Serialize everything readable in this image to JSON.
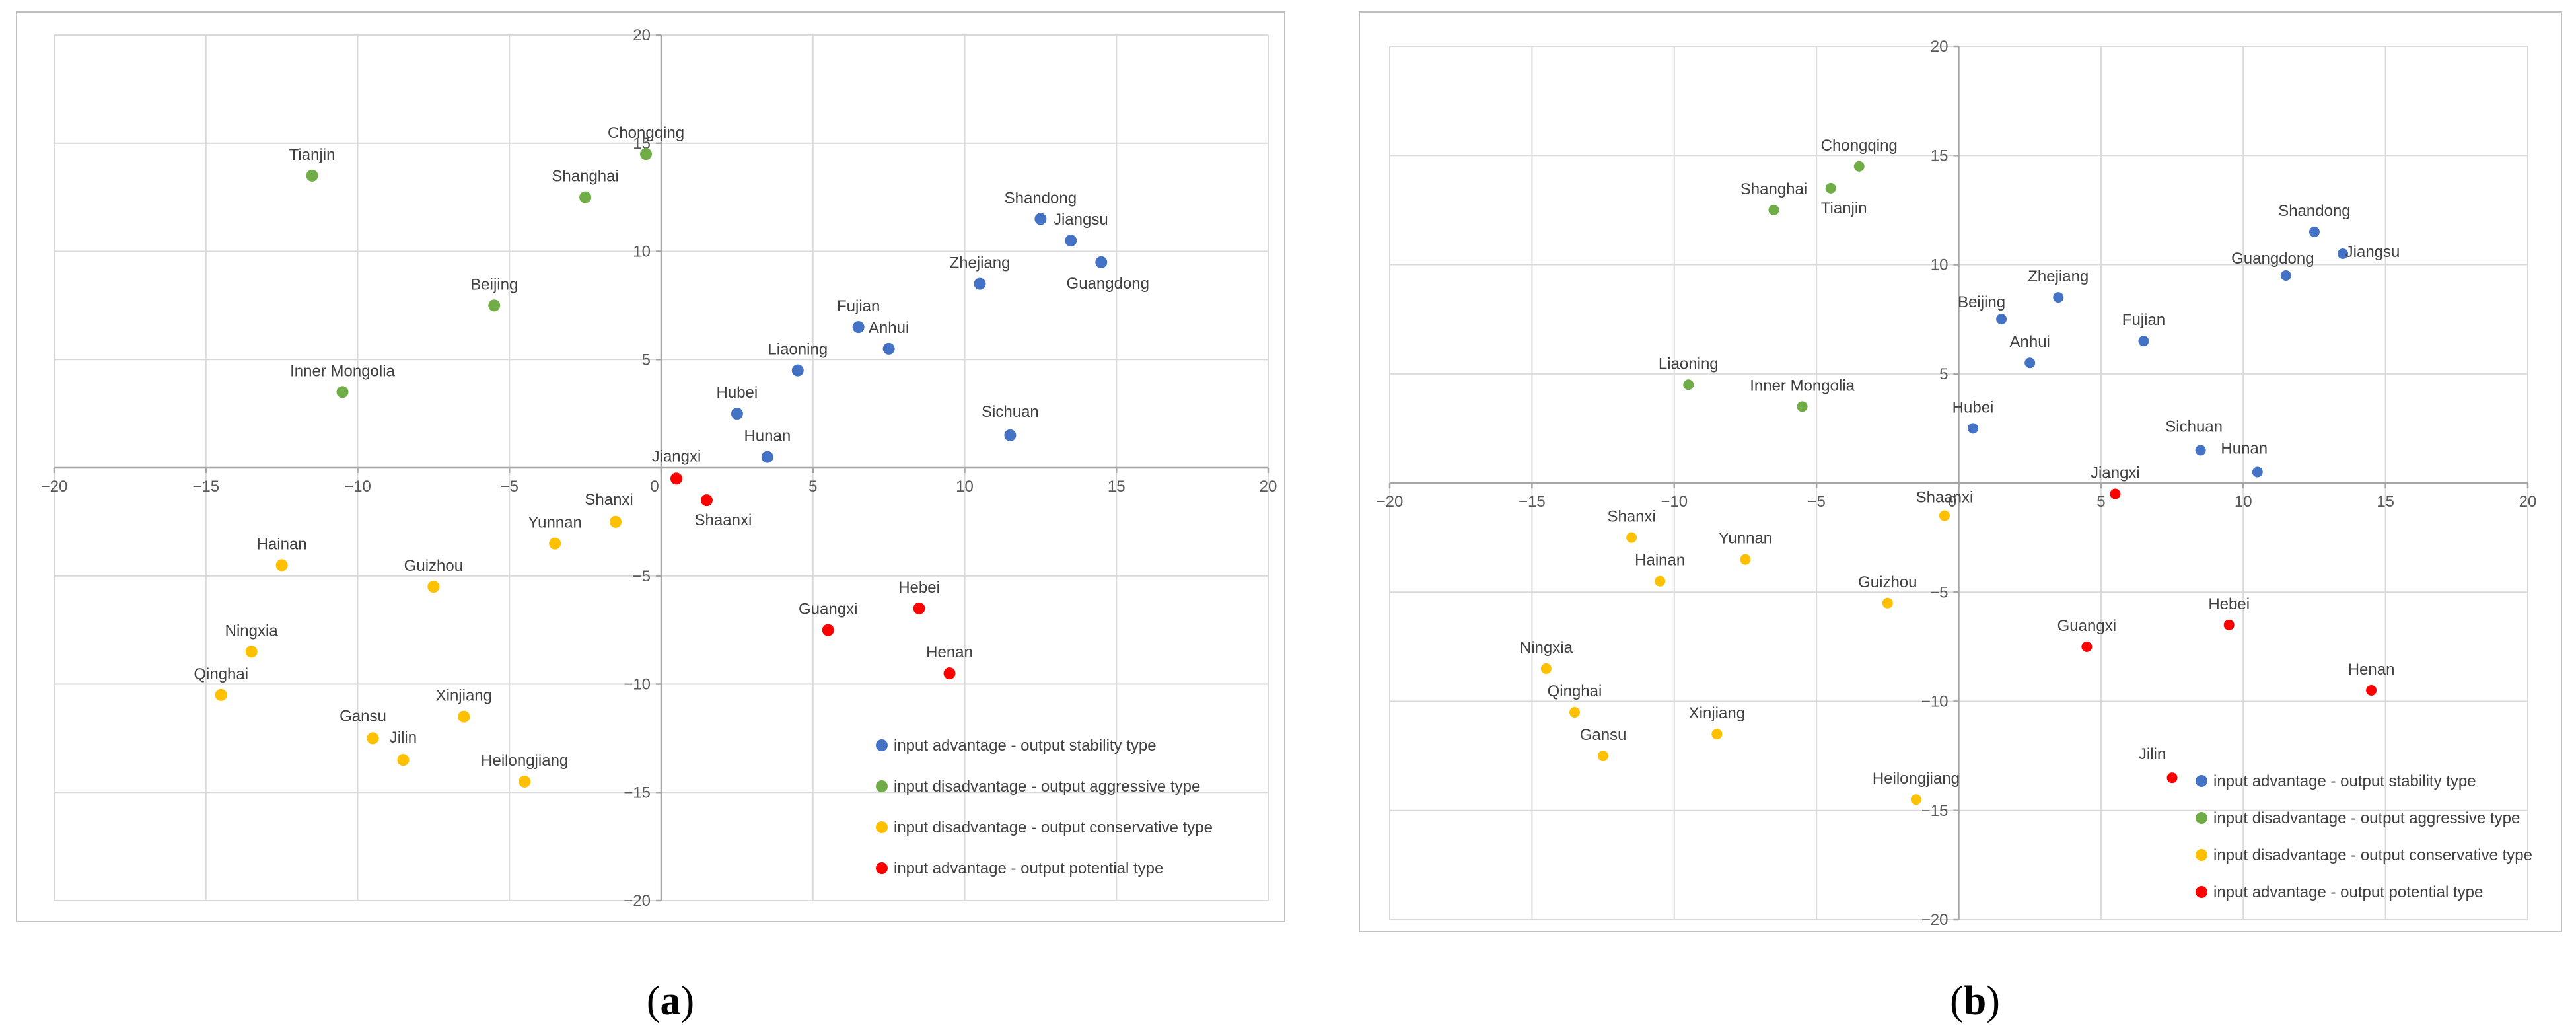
{
  "chart_data": [
    {
      "type": "scatter",
      "panel_caption": {
        "open": "(",
        "letter": "a",
        "close": ")"
      },
      "xlim": [
        -20,
        20
      ],
      "ylim": [
        -20,
        20
      ],
      "xticks": [
        -20,
        -15,
        -10,
        -5,
        0,
        5,
        10,
        15,
        20
      ],
      "yticks": [
        -20,
        -15,
        -10,
        -5,
        0,
        5,
        10,
        15,
        20
      ],
      "grid": true,
      "legend_position": "bottom-right",
      "series": [
        {
          "name": "input advantage - output stability type",
          "color": "#4472c4",
          "points": [
            {
              "label": "Shandong",
              "x": 12.5,
              "y": 11.5
            },
            {
              "label": "Jiangsu",
              "x": 13.5,
              "y": 10.5
            },
            {
              "label": "Guangdong",
              "x": 14.5,
              "y": 9.5
            },
            {
              "label": "Zhejiang",
              "x": 10.5,
              "y": 8.5
            },
            {
              "label": "Fujian",
              "x": 6.5,
              "y": 6.5
            },
            {
              "label": "Anhui",
              "x": 7.5,
              "y": 5.5
            },
            {
              "label": "Liaoning",
              "x": 4.5,
              "y": 4.5
            },
            {
              "label": "Hubei",
              "x": 2.5,
              "y": 2.5
            },
            {
              "label": "Hunan",
              "x": 3.5,
              "y": 0.5
            },
            {
              "label": "Sichuan",
              "x": 11.5,
              "y": 1.5
            }
          ]
        },
        {
          "name": "input disadvantage - output aggressive type",
          "color": "#70ad47",
          "points": [
            {
              "label": "Chongqing",
              "x": -0.5,
              "y": 14.5
            },
            {
              "label": "Tianjin",
              "x": -11.5,
              "y": 13.5
            },
            {
              "label": "Shanghai",
              "x": -2.5,
              "y": 12.5
            },
            {
              "label": "Beijing",
              "x": -5.5,
              "y": 7.5
            },
            {
              "label": "Inner Mongolia",
              "x": -10.5,
              "y": 3.5
            }
          ]
        },
        {
          "name": "input disadvantage - output conservative type",
          "color": "#ffc000",
          "points": [
            {
              "label": "Shanxi",
              "x": -1.5,
              "y": -2.5
            },
            {
              "label": "Yunnan",
              "x": -3.5,
              "y": -3.5
            },
            {
              "label": "Hainan",
              "x": -12.5,
              "y": -4.5
            },
            {
              "label": "Guizhou",
              "x": -7.5,
              "y": -5.5
            },
            {
              "label": "Ningxia",
              "x": -13.5,
              "y": -8.5
            },
            {
              "label": "Qinghai",
              "x": -14.5,
              "y": -10.5
            },
            {
              "label": "Xinjiang",
              "x": -6.5,
              "y": -11.5
            },
            {
              "label": "Gansu",
              "x": -9.5,
              "y": -12.5
            },
            {
              "label": "Jilin",
              "x": -8.5,
              "y": -13.5
            },
            {
              "label": "Heilongjiang",
              "x": -4.5,
              "y": -14.5
            }
          ]
        },
        {
          "name": "input advantage - output potential type",
          "color": "#ff0000",
          "points": [
            {
              "label": "Jiangxi",
              "x": 0.5,
              "y": -0.5
            },
            {
              "label": "Shaanxi",
              "x": 1.5,
              "y": -1.5
            },
            {
              "label": "Hebei",
              "x": 8.5,
              "y": -6.5
            },
            {
              "label": "Guangxi",
              "x": 5.5,
              "y": -7.5
            },
            {
              "label": "Henan",
              "x": 9.5,
              "y": -9.5
            }
          ]
        }
      ]
    },
    {
      "type": "scatter",
      "panel_caption": {
        "open": "(",
        "letter": "b",
        "close": ")"
      },
      "xlim": [
        -20,
        20
      ],
      "ylim": [
        -20,
        20
      ],
      "xticks": [
        -20,
        -15,
        -10,
        -5,
        0,
        5,
        10,
        15,
        20
      ],
      "yticks": [
        -20,
        -15,
        -10,
        -5,
        0,
        5,
        10,
        15,
        20
      ],
      "grid": true,
      "legend_position": "bottom-right",
      "series": [
        {
          "name": "input advantage - output stability type",
          "color": "#4472c4",
          "points": [
            {
              "label": "Shandong",
              "x": 12.5,
              "y": 11.5
            },
            {
              "label": "Jiangsu",
              "x": 13.5,
              "y": 10.5
            },
            {
              "label": "Guangdong",
              "x": 11.5,
              "y": 9.5
            },
            {
              "label": "Zhejiang",
              "x": 3.5,
              "y": 8.5
            },
            {
              "label": "Beijing",
              "x": 1.5,
              "y": 7.5
            },
            {
              "label": "Fujian",
              "x": 6.5,
              "y": 6.5
            },
            {
              "label": "Anhui",
              "x": 2.5,
              "y": 5.5
            },
            {
              "label": "Hubei",
              "x": 0.5,
              "y": 2.5
            },
            {
              "label": "Sichuan",
              "x": 8.5,
              "y": 1.5
            },
            {
              "label": "Hunan",
              "x": 10.5,
              "y": 0.5
            }
          ]
        },
        {
          "name": "input disadvantage - output aggressive type",
          "color": "#70ad47",
          "points": [
            {
              "label": "Chongqing",
              "x": -3.5,
              "y": 14.5
            },
            {
              "label": "Tianjin",
              "x": -4.5,
              "y": 13.5
            },
            {
              "label": "Shanghai",
              "x": -6.5,
              "y": 12.5
            },
            {
              "label": "Liaoning",
              "x": -9.5,
              "y": 4.5
            },
            {
              "label": "Inner Mongolia",
              "x": -5.5,
              "y": 3.5
            }
          ]
        },
        {
          "name": "input disadvantage - output conservative type",
          "color": "#ffc000",
          "points": [
            {
              "label": "Shaanxi",
              "x": -0.5,
              "y": -1.5
            },
            {
              "label": "Shanxi",
              "x": -11.5,
              "y": -2.5
            },
            {
              "label": "Yunnan",
              "x": -7.5,
              "y": -3.5
            },
            {
              "label": "Hainan",
              "x": -10.5,
              "y": -4.5
            },
            {
              "label": "Guizhou",
              "x": -2.5,
              "y": -5.5
            },
            {
              "label": "Ningxia",
              "x": -14.5,
              "y": -8.5
            },
            {
              "label": "Qinghai",
              "x": -13.5,
              "y": -10.5
            },
            {
              "label": "Xinjiang",
              "x": -8.5,
              "y": -11.5
            },
            {
              "label": "Gansu",
              "x": -12.5,
              "y": -12.5
            },
            {
              "label": "Heilongjiang",
              "x": -1.5,
              "y": -14.5
            }
          ]
        },
        {
          "name": "input advantage - output potential type",
          "color": "#ff0000",
          "points": [
            {
              "label": "Jiangxi",
              "x": 5.5,
              "y": -0.5
            },
            {
              "label": "Hebei",
              "x": 9.5,
              "y": -6.5
            },
            {
              "label": "Guangxi",
              "x": 4.5,
              "y": -7.5
            },
            {
              "label": "Henan",
              "x": 14.5,
              "y": -9.5
            },
            {
              "label": "Jilin",
              "x": 7.5,
              "y": -13.5
            }
          ]
        }
      ]
    }
  ]
}
